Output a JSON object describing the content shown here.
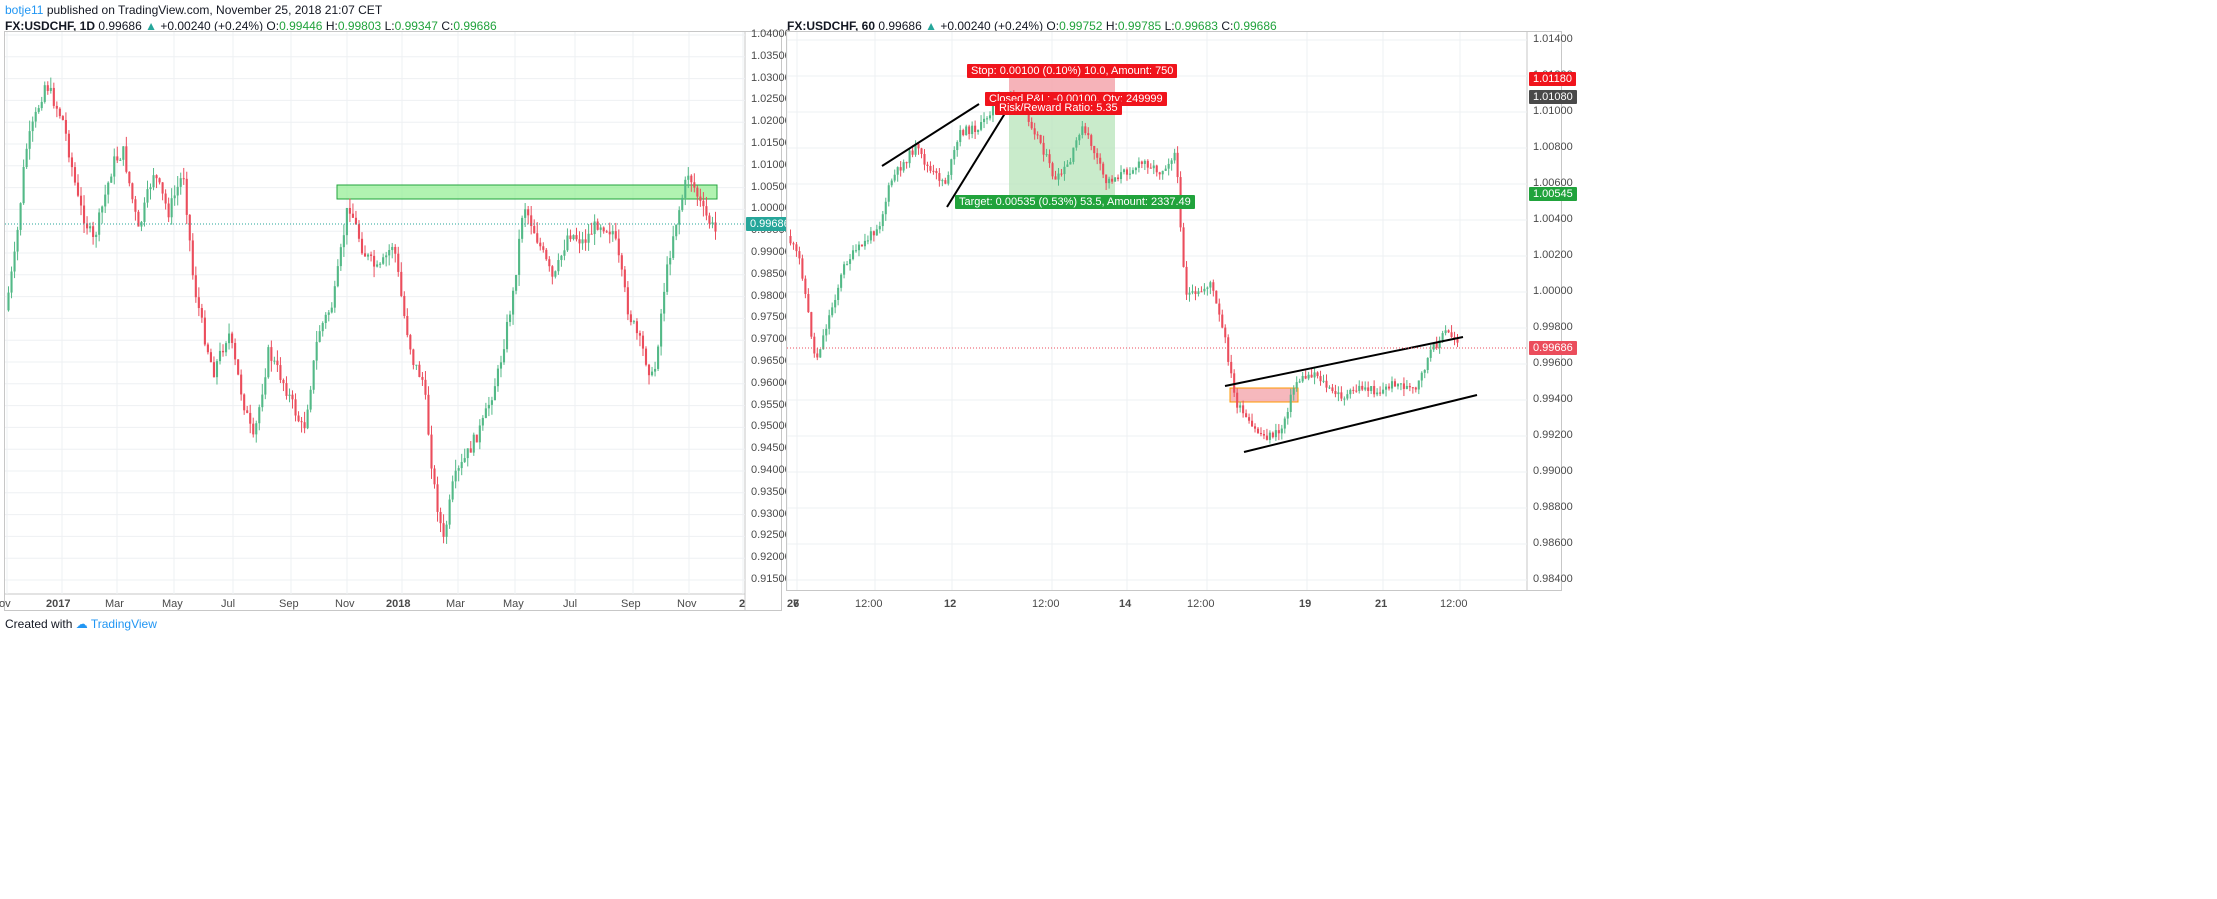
{
  "publish": {
    "author": "botje11",
    "text": "published on TradingView.com, November 25, 2018 21:07 CET"
  },
  "left_chart": {
    "symbol": "FX:USDCHF, 1D",
    "last": "0.99686",
    "change": "+0.00240 (+0.24%)",
    "o_label": "O:",
    "o": "0.99446",
    "h_label": "H:",
    "h": "0.99803",
    "l_label": "L:",
    "l": "0.99347",
    "c_label": "C:",
    "c": "0.99686",
    "price_labels": [
      "1.04000",
      "1.03500",
      "1.03000",
      "1.02500",
      "1.02000",
      "1.01500",
      "1.01000",
      "1.00500",
      "1.00000",
      "0.99500",
      "0.99000",
      "0.98500",
      "0.98000",
      "0.97500",
      "0.97000",
      "0.96500",
      "0.96000",
      "0.95500",
      "0.95000",
      "0.94500",
      "0.94000",
      "0.93500",
      "0.93000",
      "0.92500",
      "0.92000",
      "0.91500"
    ],
    "price_min": 0.915,
    "price_max": 1.04,
    "current_tag": "0.99686",
    "time_labels": [
      "ov",
      "2017",
      "Mar",
      "May",
      "Jul",
      "Sep",
      "Nov",
      "2018",
      "Mar",
      "May",
      "Jul",
      "Sep",
      "Nov",
      "2"
    ],
    "colors": {
      "up": "#53b987",
      "down": "#eb4d5c",
      "zone": "#90ee90"
    }
  },
  "right_chart": {
    "symbol": "FX:USDCHF, 60",
    "last": "0.99686",
    "change": "+0.00240 (+0.24%)",
    "o_label": "O:",
    "o": "0.99752",
    "h_label": "H:",
    "h": "0.99785",
    "l_label": "L:",
    "l": "0.99683",
    "c_label": "C:",
    "c": "0.99686",
    "price_labels": [
      "1.01400",
      "1.01200",
      "1.01000",
      "1.00800",
      "1.00600",
      "1.00400",
      "1.00200",
      "1.00000",
      "0.99800",
      "0.99600",
      "0.99400",
      "0.99200",
      "0.99000",
      "0.98800",
      "0.98600",
      "0.98400"
    ],
    "price_min": 0.984,
    "price_max": 1.014,
    "tags": {
      "stop": "1.01180",
      "entry": "1.01080",
      "target": "1.00545",
      "current": "0.99686"
    },
    "stop_box": "Stop: 0.00100 (0.10%) 10.0, Amount: 750",
    "closed_box": "Closed P&L: -0.00100, Qty: 249999",
    "rr_box": "Risk/Reward Ratio: 5.35",
    "target_box": "Target: 0.00535 (0.53%) 53.5, Amount: 2337.49",
    "time_labels": [
      "7",
      "12:00",
      "12",
      "12:00",
      "14",
      "12:00",
      "19",
      "21",
      "12:00",
      "26"
    ]
  },
  "footer": {
    "created": "Created with",
    "brand": "TradingView"
  }
}
